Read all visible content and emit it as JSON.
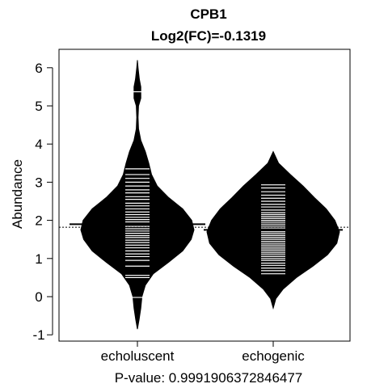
{
  "chart_data": {
    "type": "beanplot",
    "title": "CPB1",
    "subtitle": "Log2(FC)=-0.1319",
    "ylabel": "Abundance",
    "xlabel": "P-value: 0.9991906372846477",
    "ylim": [
      -1.2,
      6.6
    ],
    "yticks": [
      -1,
      0,
      1,
      2,
      3,
      4,
      5,
      6
    ],
    "overall_mean": 1.82,
    "grid": false,
    "categories": [
      "echoluscent",
      "echogenic"
    ],
    "beans": [
      {
        "name": "echoluscent",
        "mean": 1.9,
        "density": [
          [
            -0.85,
            0
          ],
          [
            -0.6,
            0.03
          ],
          [
            -0.3,
            0.06
          ],
          [
            0.0,
            0.08
          ],
          [
            0.3,
            0.14
          ],
          [
            0.6,
            0.28
          ],
          [
            0.9,
            0.55
          ],
          [
            1.2,
            0.8
          ],
          [
            1.5,
            0.95
          ],
          [
            1.75,
            1.0
          ],
          [
            2.0,
            0.96
          ],
          [
            2.3,
            0.8
          ],
          [
            2.6,
            0.55
          ],
          [
            2.9,
            0.35
          ],
          [
            3.2,
            0.25
          ],
          [
            3.5,
            0.2
          ],
          [
            3.8,
            0.14
          ],
          [
            4.1,
            0.06
          ],
          [
            4.4,
            0.02
          ],
          [
            4.7,
            0.012
          ],
          [
            5.0,
            0.02
          ],
          [
            5.2,
            0.06
          ],
          [
            5.5,
            0.06
          ],
          [
            5.7,
            0.035
          ],
          [
            6.0,
            0.012
          ],
          [
            6.2,
            0
          ]
        ],
        "points": [
          -0.02,
          0.5,
          0.56,
          0.8,
          0.95,
          1.05,
          1.12,
          1.2,
          1.28,
          1.35,
          1.42,
          1.48,
          1.55,
          1.6,
          1.66,
          1.72,
          1.78,
          1.84,
          1.9,
          1.96,
          2.02,
          2.08,
          2.15,
          2.22,
          2.3,
          2.38,
          2.45,
          2.55,
          2.62,
          2.72,
          2.8,
          2.9,
          3.0,
          3.1,
          3.2,
          3.35,
          5.37
        ]
      },
      {
        "name": "echogenic",
        "mean": 1.75,
        "density": [
          [
            -0.3,
            0
          ],
          [
            -0.05,
            0.04
          ],
          [
            0.2,
            0.15
          ],
          [
            0.5,
            0.35
          ],
          [
            0.8,
            0.6
          ],
          [
            1.1,
            0.82
          ],
          [
            1.4,
            0.96
          ],
          [
            1.7,
            1.0
          ],
          [
            2.0,
            0.93
          ],
          [
            2.3,
            0.8
          ],
          [
            2.6,
            0.62
          ],
          [
            2.9,
            0.45
          ],
          [
            3.2,
            0.26
          ],
          [
            3.5,
            0.08
          ],
          [
            3.8,
            0
          ]
        ],
        "points": [
          0.6,
          0.68,
          0.75,
          0.82,
          0.88,
          0.95,
          1.0,
          1.05,
          1.1,
          1.15,
          1.2,
          1.25,
          1.3,
          1.35,
          1.4,
          1.45,
          1.5,
          1.55,
          1.6,
          1.65,
          1.7,
          1.75,
          1.8,
          1.85,
          1.9,
          1.95,
          2.0,
          2.05,
          2.1,
          2.15,
          2.2,
          2.27,
          2.35,
          2.42,
          2.5,
          2.58,
          2.66,
          2.75,
          2.85,
          2.93
        ]
      }
    ]
  }
}
